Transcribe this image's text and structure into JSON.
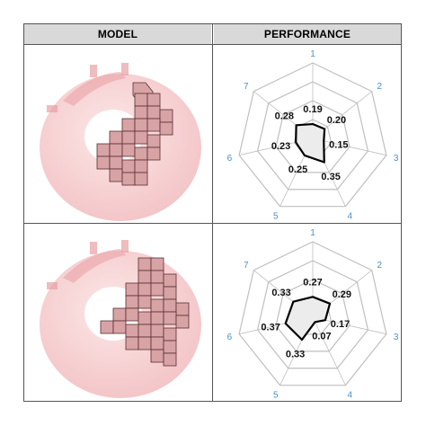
{
  "headers": {
    "model": "MODEL",
    "performance": "PERFORMANCE"
  },
  "colors": {
    "header_bg": "#d9d9d9",
    "torus": "#f5c6c8",
    "block_fill": "#d7a3a5",
    "block_edge": "#5a2f33",
    "radar_grid": "#bfbfbf",
    "axis_label": "#4a90c8",
    "polygon_fill": "#ececec",
    "polygon_stroke": "#000000"
  },
  "rows": [
    {
      "model": {
        "image": "pink-torus-with-block-cluster"
      },
      "chart_data": {
        "type": "radar",
        "axes": [
          "1",
          "2",
          "3",
          "4",
          "5",
          "6",
          "7"
        ],
        "values": [
          0.19,
          0.2,
          0.15,
          0.35,
          0.25,
          0.23,
          0.28
        ],
        "value_labels": [
          "0.19",
          "0.20",
          "0.15",
          "0.35",
          "0.25",
          "0.23",
          "0.28"
        ],
        "rmax": 1.0,
        "rings": 4
      }
    },
    {
      "model": {
        "image": "pink-torus-with-block-cluster"
      },
      "chart_data": {
        "type": "radar",
        "axes": [
          "1",
          "2",
          "3",
          "4",
          "5",
          "6",
          "7"
        ],
        "values": [
          0.27,
          0.29,
          0.17,
          0.07,
          0.33,
          0.37,
          0.33
        ],
        "value_labels": [
          "0.27",
          "0.29",
          "0.17",
          "0.07",
          "0.33",
          "0.37",
          "0.33"
        ],
        "rmax": 1.0,
        "rings": 4
      }
    }
  ]
}
